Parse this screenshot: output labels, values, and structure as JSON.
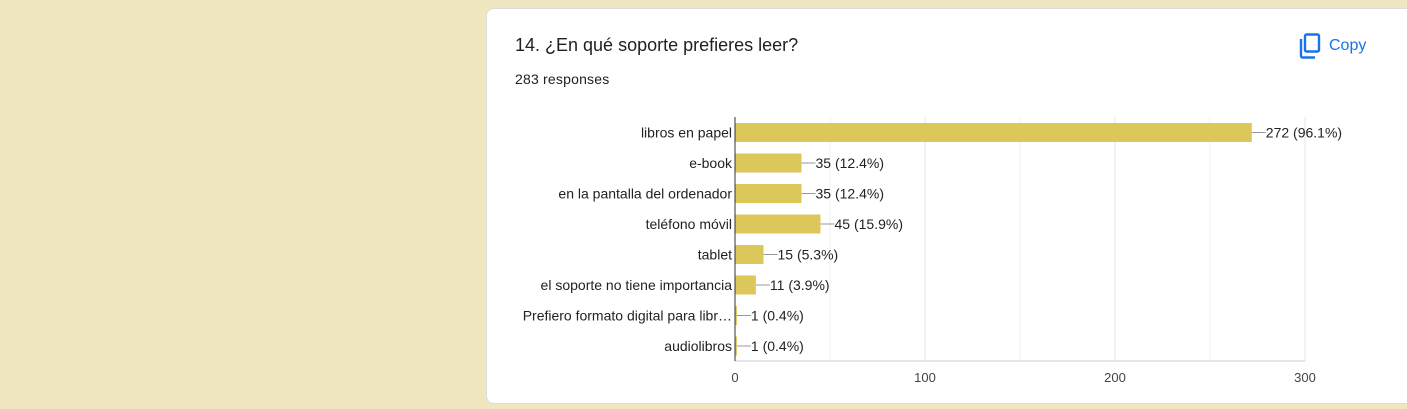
{
  "question": {
    "title": "14. ¿En qué soporte prefieres leer?",
    "responses": "283 responses"
  },
  "actions": {
    "copy_label": "Copy",
    "copy_icon": "copy-icon"
  },
  "colors": {
    "bar": "#dcc75b",
    "accent": "#1a73e8",
    "background": "#f0e6bf"
  },
  "chart_data": {
    "type": "bar",
    "orientation": "horizontal",
    "title": "",
    "xlabel": "",
    "ylabel": "",
    "xlim": [
      0,
      300
    ],
    "ticks": [
      "0",
      "100",
      "200",
      "300"
    ],
    "grid": true,
    "categories": [
      "libros en papel",
      "e-book",
      "en la pantalla del ordenador",
      "teléfono móvil",
      "tablet",
      "el soporte no tiene importancia",
      "Prefiero formato digital para libr…",
      "audiolibros"
    ],
    "values": [
      272,
      35,
      35,
      45,
      15,
      11,
      1,
      1
    ],
    "data_labels": [
      "272 (96.1%)",
      "35 (12.4%)",
      "35 (12.4%)",
      "45 (15.9%)",
      "15 (5.3%)",
      "11 (3.9%)",
      "1 (0.4%)",
      "1 (0.4%)"
    ]
  }
}
